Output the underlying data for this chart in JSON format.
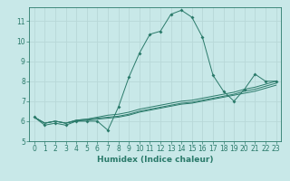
{
  "xlabel": "Humidex (Indice chaleur)",
  "ylabel": "",
  "background_color": "#c8e8e8",
  "grid_color": "#b8d8d8",
  "line_color": "#2a7a6a",
  "xlim": [
    -0.5,
    23.5
  ],
  "ylim": [
    5.0,
    11.7
  ],
  "yticks": [
    5,
    6,
    7,
    8,
    9,
    10,
    11
  ],
  "xticks": [
    0,
    1,
    2,
    3,
    4,
    5,
    6,
    7,
    8,
    9,
    10,
    11,
    12,
    13,
    14,
    15,
    16,
    17,
    18,
    19,
    20,
    21,
    22,
    23
  ],
  "line1_x": [
    0,
    1,
    2,
    3,
    4,
    5,
    6,
    7,
    8,
    9,
    10,
    11,
    12,
    13,
    14,
    15,
    16,
    17,
    18,
    19,
    20,
    21,
    22,
    23
  ],
  "line1_y": [
    6.2,
    5.8,
    5.9,
    5.8,
    6.0,
    6.0,
    6.0,
    5.55,
    6.7,
    8.2,
    9.4,
    10.35,
    10.5,
    11.35,
    11.55,
    11.2,
    10.2,
    8.3,
    7.5,
    7.0,
    7.6,
    8.35,
    8.0,
    8.0
  ],
  "line2_x": [
    0,
    1,
    2,
    3,
    4,
    5,
    6,
    7,
    8,
    9,
    10,
    11,
    12,
    13,
    14,
    15,
    16,
    17,
    18,
    19,
    20,
    21,
    22,
    23
  ],
  "line2_y": [
    6.2,
    5.9,
    6.0,
    5.9,
    6.0,
    6.05,
    6.1,
    6.15,
    6.2,
    6.3,
    6.45,
    6.55,
    6.65,
    6.75,
    6.85,
    6.9,
    7.0,
    7.1,
    7.2,
    7.3,
    7.4,
    7.5,
    7.65,
    7.8
  ],
  "line3_x": [
    0,
    1,
    2,
    3,
    4,
    5,
    6,
    7,
    8,
    9,
    10,
    11,
    12,
    13,
    14,
    15,
    16,
    17,
    18,
    19,
    20,
    21,
    22,
    23
  ],
  "line3_y": [
    6.2,
    5.9,
    6.0,
    5.9,
    6.05,
    6.1,
    6.15,
    6.2,
    6.25,
    6.35,
    6.5,
    6.6,
    6.7,
    6.8,
    6.9,
    6.95,
    7.05,
    7.15,
    7.25,
    7.35,
    7.5,
    7.6,
    7.75,
    7.9
  ],
  "line4_x": [
    0,
    1,
    2,
    3,
    4,
    5,
    6,
    7,
    8,
    9,
    10,
    11,
    12,
    13,
    14,
    15,
    16,
    17,
    18,
    19,
    20,
    21,
    22,
    23
  ],
  "line4_y": [
    6.2,
    5.9,
    6.0,
    5.9,
    6.05,
    6.1,
    6.2,
    6.3,
    6.35,
    6.45,
    6.6,
    6.7,
    6.8,
    6.9,
    7.0,
    7.05,
    7.15,
    7.25,
    7.35,
    7.45,
    7.6,
    7.7,
    7.85,
    8.0
  ],
  "xlabel_fontsize": 6.5,
  "tick_fontsize": 5.5
}
